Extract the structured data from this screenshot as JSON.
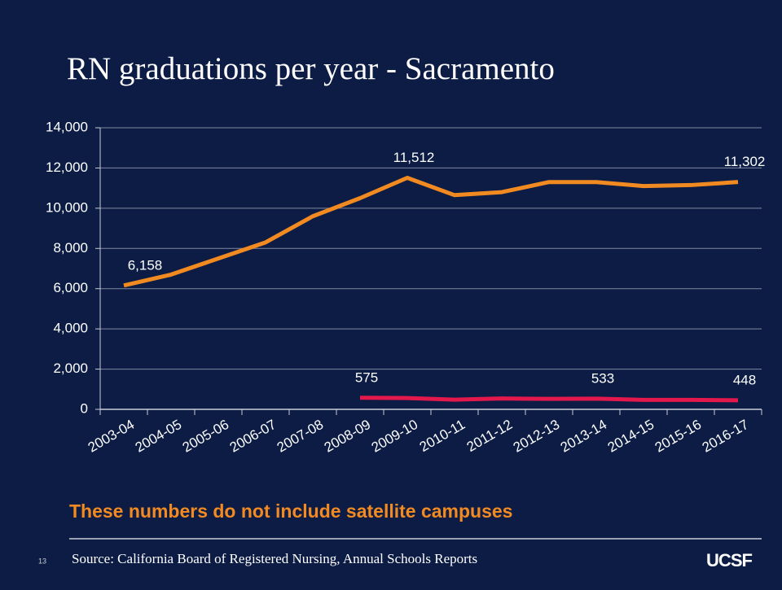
{
  "chart_data": {
    "type": "line",
    "title": "RN graduations per year - Sacramento",
    "categories": [
      "2003-04",
      "2004-05",
      "2005-06",
      "2006-07",
      "2007-08",
      "2008-09",
      "2009-10",
      "2010-11",
      "2011-12",
      "2012-13",
      "2013-14",
      "2014-15",
      "2015-16",
      "2016-17"
    ],
    "series": [
      {
        "color": "#f28a22",
        "values": [
          6158,
          6700,
          7500,
          8300,
          9600,
          10500,
          11512,
          10650,
          10800,
          11300,
          11300,
          11100,
          11150,
          11302
        ],
        "value_labels": [
          "6,158",
          null,
          null,
          null,
          null,
          null,
          "11,512",
          null,
          null,
          null,
          null,
          null,
          null,
          "11,302"
        ]
      },
      {
        "color": "#e3184c",
        "values": [
          null,
          null,
          null,
          null,
          null,
          575,
          560,
          480,
          540,
          520,
          533,
          470,
          470,
          448
        ],
        "value_labels": [
          null,
          null,
          null,
          null,
          null,
          "575",
          null,
          null,
          null,
          null,
          "533",
          null,
          null,
          "448"
        ]
      }
    ],
    "ylim": [
      0,
      14000
    ],
    "yticks": [
      0,
      {
        "value": 2000,
        "label": "2,000"
      },
      {
        "value": 4000,
        "label": "4,000"
      },
      {
        "value": 6000,
        "label": "6,000"
      },
      {
        "value": 8000,
        "label": "8,000"
      },
      {
        "value": 10000,
        "label": "10,000"
      },
      {
        "value": 12000,
        "label": "12,000"
      },
      {
        "value": 14000,
        "label": "14,000"
      }
    ],
    "grid": true
  },
  "note": "These numbers do not include satellite campuses",
  "footer": {
    "page": "13",
    "source": "Source: California Board of Registered Nursing, Annual Schools Reports",
    "logo": "UCSF"
  }
}
